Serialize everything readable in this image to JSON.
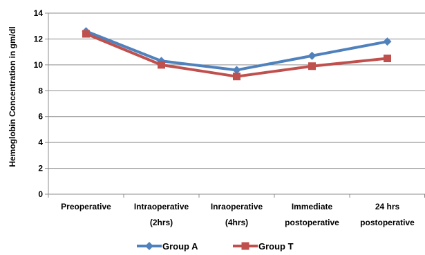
{
  "chart_data": {
    "type": "line",
    "categories": [
      [
        "Preoperative"
      ],
      [
        "Intraoperative",
        "(2hrs)"
      ],
      [
        "Inraoperative",
        "(4hrs)"
      ],
      [
        "Immediate",
        "postoperative"
      ],
      [
        "24 hrs",
        "postoperative"
      ]
    ],
    "ylabel": "Hemoglobin Concentration in gm/dl",
    "ylim": [
      0,
      14
    ],
    "yticks": [
      0,
      2,
      4,
      6,
      8,
      10,
      12,
      14
    ],
    "grid": "horizontal",
    "legend_position": "bottom",
    "series": [
      {
        "name": "Group A",
        "color": "#4F81BD",
        "marker": "diamond",
        "values": [
          12.6,
          10.3,
          9.6,
          10.7,
          11.8
        ]
      },
      {
        "name": "Group T",
        "color": "#C0504D",
        "marker": "square",
        "values": [
          12.4,
          10.0,
          9.1,
          9.9,
          10.5
        ]
      }
    ]
  }
}
